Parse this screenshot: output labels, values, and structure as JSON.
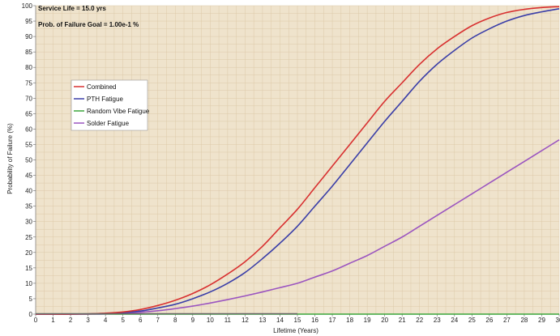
{
  "chart_data": {
    "type": "line",
    "xlabel": "Lifetime (Years)",
    "ylabel": "Probability of Failure (%)",
    "xlim": [
      0,
      30
    ],
    "ylim": [
      0,
      100
    ],
    "x_ticks": [
      0,
      1,
      2,
      3,
      4,
      5,
      6,
      7,
      8,
      9,
      10,
      11,
      12,
      13,
      14,
      15,
      16,
      17,
      18,
      19,
      20,
      21,
      22,
      23,
      24,
      25,
      26,
      27,
      28,
      29,
      30
    ],
    "y_ticks": [
      0,
      5,
      10,
      15,
      20,
      25,
      30,
      35,
      40,
      45,
      50,
      55,
      60,
      65,
      70,
      75,
      80,
      85,
      90,
      95,
      100
    ],
    "grid": true,
    "legend_position": "left",
    "annotations": [
      "Service Life = 15.0 yrs",
      "Prob. of Failure Goal = 1.00e-1 %"
    ],
    "x": [
      0,
      1,
      2,
      3,
      4,
      5,
      6,
      7,
      8,
      9,
      10,
      11,
      12,
      13,
      14,
      15,
      16,
      17,
      18,
      19,
      20,
      21,
      22,
      23,
      24,
      25,
      26,
      27,
      28,
      29,
      30
    ],
    "series": [
      {
        "name": "Combined",
        "color": "#d83030",
        "values": [
          0,
          0,
          0,
          0.1,
          0.3,
          0.7,
          1.5,
          2.8,
          4.5,
          6.7,
          9.5,
          13,
          17,
          22,
          28,
          34,
          41,
          48,
          55,
          62,
          69,
          75,
          81,
          86,
          90,
          93.5,
          96,
          97.8,
          98.8,
          99.4,
          99.7
        ]
      },
      {
        "name": "PTH Fatigue",
        "color": "#3a3ea8",
        "values": [
          0,
          0,
          0,
          0.05,
          0.2,
          0.5,
          1,
          2,
          3.2,
          5,
          7.2,
          10,
          13.5,
          18,
          23,
          28.5,
          35,
          41.5,
          48.5,
          55.5,
          62.5,
          69,
          75.5,
          81,
          85.5,
          89.5,
          92.5,
          95,
          96.8,
          98,
          99
        ]
      },
      {
        "name": "Random Vibe Fatigue",
        "color": "#3aa63a",
        "values": [
          0,
          0,
          0,
          0,
          0,
          0,
          0,
          0,
          0,
          0,
          0,
          0,
          0,
          0,
          0,
          0,
          0,
          0,
          0,
          0,
          0,
          0,
          0,
          0,
          0,
          0,
          0,
          0,
          0,
          0,
          0
        ]
      },
      {
        "name": "Solder Fatigue",
        "color": "#9b55c0",
        "values": [
          0,
          0,
          0,
          0.05,
          0.1,
          0.3,
          0.6,
          1.1,
          1.8,
          2.6,
          3.6,
          4.7,
          5.9,
          7.2,
          8.6,
          10,
          12,
          14,
          16.5,
          19,
          22,
          25,
          28.5,
          32,
          35.5,
          39,
          42.5,
          46,
          49.5,
          53,
          56.5
        ]
      }
    ]
  },
  "colors": {
    "plot_background": "#efe3cc",
    "grid": "#dcc9a8",
    "service_life_segment": "#666666"
  }
}
